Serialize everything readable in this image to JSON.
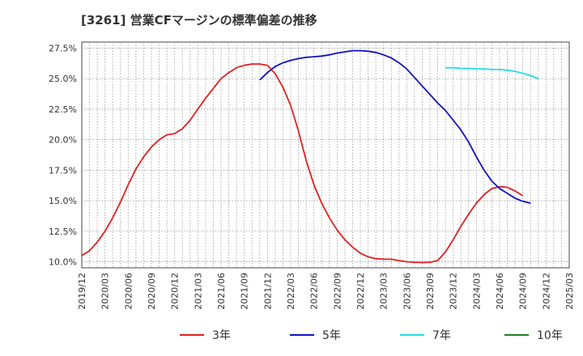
{
  "chart_data": {
    "type": "line",
    "title": "[3261]  営業CFマージンの標準偏差の推移",
    "y_ticks": [
      "10.0%",
      "12.5%",
      "15.0%",
      "17.5%",
      "20.0%",
      "22.5%",
      "25.0%",
      "27.5%"
    ],
    "y_tick_values": [
      10.0,
      12.5,
      15.0,
      17.5,
      20.0,
      22.5,
      25.0,
      27.5
    ],
    "ylim": [
      9.5,
      28.0
    ],
    "x_ticks": [
      "2019/12",
      "2020/03",
      "2020/06",
      "2020/09",
      "2020/12",
      "2021/03",
      "2021/06",
      "2021/09",
      "2021/12",
      "2022/03",
      "2022/06",
      "2022/09",
      "2022/12",
      "2023/03",
      "2023/06",
      "2023/09",
      "2023/12",
      "2024/03",
      "2024/06",
      "2024/09",
      "2024/12",
      "2025/03"
    ],
    "grid": true,
    "legend_position": "bottom",
    "series": [
      {
        "name": "3年",
        "color": "#e02020",
        "start_index": 0,
        "values": [
          10.5,
          10.9,
          11.6,
          12.5,
          13.6,
          14.9,
          16.3,
          17.6,
          18.6,
          19.4,
          20.0,
          20.4,
          20.5,
          20.9,
          21.6,
          22.5,
          23.4,
          24.2,
          25.0,
          25.5,
          25.9,
          26.1,
          26.2,
          26.2,
          26.1,
          25.4,
          24.3,
          22.8,
          20.7,
          18.3,
          16.3,
          14.8,
          13.6,
          12.6,
          11.8,
          11.2,
          10.7,
          10.4,
          10.25,
          10.2,
          10.2,
          10.1,
          10.0,
          9.95,
          9.93,
          9.95,
          10.1,
          10.8,
          11.8,
          12.9,
          13.9,
          14.8,
          15.5,
          16.0,
          16.15,
          16.1,
          15.8,
          15.4
        ]
      },
      {
        "name": "5年",
        "color": "#1010c0",
        "start_index": 23,
        "values": [
          24.9,
          25.5,
          26.0,
          26.3,
          26.5,
          26.65,
          26.75,
          26.8,
          26.85,
          26.95,
          27.1,
          27.2,
          27.3,
          27.3,
          27.25,
          27.15,
          26.95,
          26.7,
          26.3,
          25.8,
          25.1,
          24.4,
          23.7,
          23.0,
          22.4,
          21.6,
          20.8,
          19.8,
          18.6,
          17.5,
          16.6,
          16.0,
          15.6,
          15.2,
          14.95,
          14.8
        ]
      },
      {
        "name": "7年",
        "color": "#20e0e8",
        "start_index": 47,
        "values": [
          25.9,
          25.9,
          25.85,
          25.85,
          25.8,
          25.8,
          25.75,
          25.75,
          25.7,
          25.6,
          25.45,
          25.25,
          25.0
        ]
      },
      {
        "name": "10年",
        "color": "#208020",
        "start_index": 0,
        "values": []
      }
    ]
  }
}
